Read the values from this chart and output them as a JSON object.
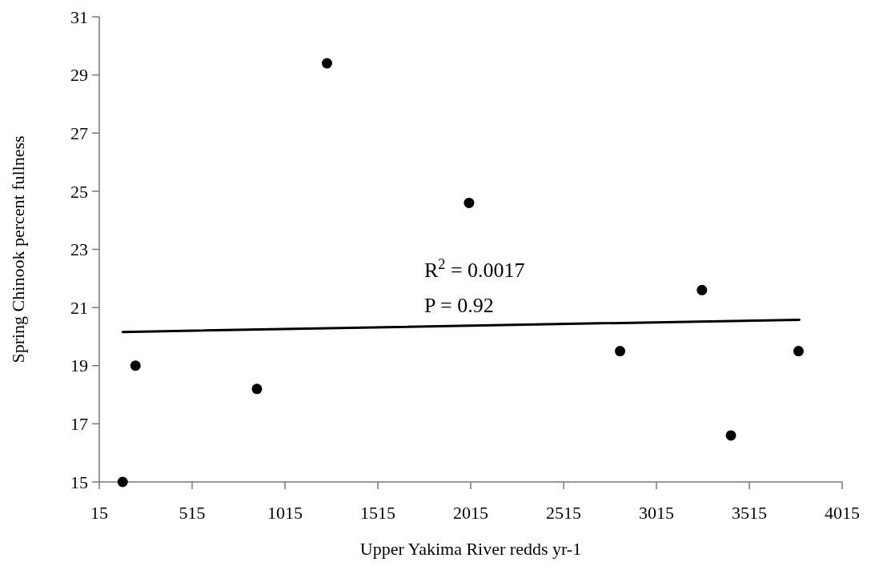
{
  "chart_data": {
    "type": "scatter",
    "xlabel": "Upper Yakima River redds yr-1",
    "ylabel": "Spring Chinook percent fullness",
    "annotations": [
      "R$^{2}$ = 0.0017",
      "P = 0.92"
    ],
    "series": [
      {
        "color": "#000000",
        "marker": "circle",
        "x": [
          141,
          210,
          864,
          1241,
          2006,
          2819,
          3260,
          3416,
          3780
        ],
        "values": [
          15,
          19.0,
          18.2,
          29.4,
          24.6,
          19.5,
          21.6,
          16.6,
          19.5
        ]
      },
      {
        "type": "line",
        "color": "#000000",
        "marker": "none",
        "line_style": "solid",
        "x": [
          141,
          3784
        ],
        "values": [
          20.16,
          20.58
        ]
      }
    ],
    "xlim": [
      15,
      4015
    ],
    "xticks": [
      15,
      515,
      1015,
      1515,
      2015,
      2515,
      3015,
      3515,
      4015
    ],
    "ylim": [
      15,
      31
    ],
    "yticks": [
      15,
      17,
      19,
      21,
      23,
      25,
      27,
      29,
      31
    ],
    "grid": false
  }
}
